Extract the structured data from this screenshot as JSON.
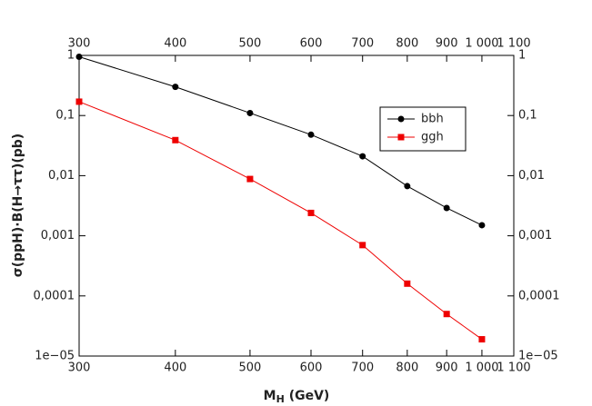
{
  "chart_data": {
    "type": "line",
    "x_label": {
      "main": "M",
      "sub": "H",
      "unit": " (GeV)"
    },
    "y_label": "σ(ppH)·B(H→ττ)(pb)",
    "x": [
      300,
      400,
      500,
      600,
      700,
      800,
      900,
      1000
    ],
    "series": [
      {
        "name": "bbh",
        "color": "#000000",
        "marker": "circle",
        "values": [
          0.95,
          0.3,
          0.11,
          0.048,
          0.021,
          0.0067,
          0.0029,
          0.0015
        ]
      },
      {
        "name": "ggh",
        "color": "#ee0000",
        "marker": "square",
        "values": [
          0.17,
          0.039,
          0.0088,
          0.0024,
          0.0007,
          0.00016,
          5e-05,
          1.9e-05
        ]
      }
    ],
    "xscale": "log",
    "yscale": "log",
    "xlim": [
      300,
      1100
    ],
    "ylim": [
      1e-05,
      1
    ],
    "xticks": [
      300,
      400,
      500,
      600,
      700,
      800,
      900,
      {
        "value": 1000,
        "label": "1 000"
      },
      {
        "value": 1100,
        "label": "1 100"
      }
    ],
    "yticks": [
      {
        "value": 1e-05,
        "label": "1e−05"
      },
      {
        "value": 0.0001,
        "label": "0,0001"
      },
      {
        "value": 0.001,
        "label": "0,001"
      },
      {
        "value": 0.01,
        "label": "0,01"
      },
      {
        "value": 0.1,
        "label": "0,1"
      },
      1
    ],
    "legend": "upper right"
  }
}
